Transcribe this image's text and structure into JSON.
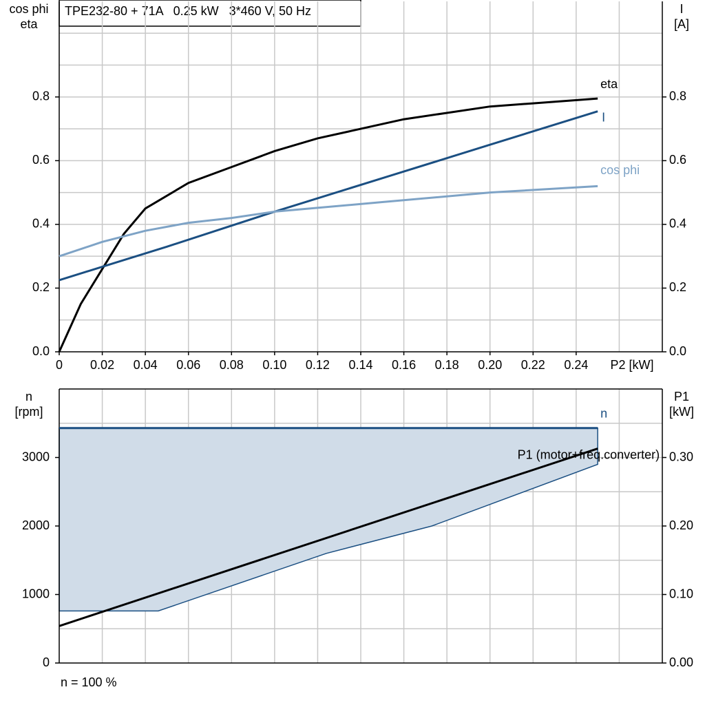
{
  "chart_data": [
    {
      "type": "line",
      "title": "TPE232-80 + 71A   0.25 kW   3*460 V, 50 Hz",
      "ylabel": [
        "cos phi",
        "eta"
      ],
      "y2label": [
        "I",
        "[A]"
      ],
      "xlabel": "P2 [kW]",
      "xlim": [
        0,
        0.28
      ],
      "xticks": [
        0,
        0.02,
        0.04,
        0.06,
        0.08,
        {
          "value": 0.1,
          "label": "0.10"
        },
        0.12,
        0.14,
        0.16,
        0.18,
        {
          "value": 0.2,
          "label": "0.20"
        },
        0.22,
        0.24
      ],
      "xgrid": [
        0.02,
        0.04,
        0.06,
        0.08,
        0.1,
        0.12,
        0.14,
        0.16,
        0.18,
        0.2,
        0.22,
        0.24,
        0.26
      ],
      "ylim": [
        0,
        1.1
      ],
      "yticks": [
        {
          "value": 0,
          "label": "0.0"
        },
        0.2,
        0.4,
        0.6,
        0.8
      ],
      "ygrid": [
        0.1,
        0.2,
        0.3,
        0.4,
        0.5,
        0.6,
        0.7,
        0.8,
        0.9,
        1.0
      ],
      "y2lim": [
        0,
        1.1
      ],
      "y2ticks": [
        {
          "value": 0,
          "label": "0.0"
        },
        0.2,
        0.4,
        0.6,
        0.8
      ],
      "series": [
        {
          "name": "eta",
          "color": "#000000",
          "x": [
            0,
            0.01,
            0.02,
            0.03,
            0.04,
            0.06,
            0.08,
            0.1,
            0.12,
            0.14,
            0.16,
            0.18,
            0.2,
            0.22,
            0.25
          ],
          "values": [
            0,
            0.15,
            0.26,
            0.37,
            0.45,
            0.53,
            0.58,
            0.63,
            0.67,
            0.7,
            0.73,
            0.75,
            0.77,
            0.78,
            0.795
          ]
        },
        {
          "name": "I",
          "color": "#1b4f82",
          "axis": "y2",
          "x": [
            0,
            0.05,
            0.1,
            0.15,
            0.2,
            0.25
          ],
          "values": [
            0.225,
            0.33,
            0.44,
            0.545,
            0.65,
            0.755
          ]
        },
        {
          "name": "cos phi",
          "color": "#7ea3c6",
          "x": [
            0,
            0.02,
            0.04,
            0.06,
            0.08,
            0.1,
            0.15,
            0.2,
            0.25
          ],
          "values": [
            0.3,
            0.345,
            0.38,
            0.405,
            0.42,
            0.44,
            0.47,
            0.5,
            0.52
          ]
        }
      ]
    },
    {
      "type": "line",
      "ylabel": [
        "n",
        "[rpm]"
      ],
      "y2label": [
        "P1",
        "[kW]"
      ],
      "note": "n = 100 %",
      "xlim": [
        0,
        0.28
      ],
      "xgrid": [
        0.02,
        0.04,
        0.06,
        0.08,
        0.1,
        0.12,
        0.14,
        0.16,
        0.18,
        0.2,
        0.22,
        0.24,
        0.26
      ],
      "ylim": [
        0,
        4000
      ],
      "yticks": [
        0,
        1000,
        2000,
        3000
      ],
      "ygrid": [
        500,
        1000,
        1500,
        2000,
        2500,
        3000,
        3500
      ],
      "y2lim": [
        0,
        0.4
      ],
      "y2ticks": [
        {
          "value": 0,
          "label": "0.00"
        },
        {
          "value": 0.1,
          "label": "0.10"
        },
        {
          "value": 0.2,
          "label": "0.20"
        },
        {
          "value": 0.3,
          "label": "0.30"
        }
      ],
      "area": {
        "color": "#d0dce8",
        "edge": "#1b4f82",
        "x": [
          0,
          0.046,
          0.124,
          0.173,
          0.25
        ],
        "lower": [
          760,
          760,
          1600,
          2000,
          2900
        ],
        "upper": [
          3430,
          3430,
          3430,
          3430,
          3430
        ]
      },
      "series": [
        {
          "name": "n",
          "color": "#1b4f82",
          "x": [
            0,
            0.25
          ],
          "values": [
            3430,
            3430
          ]
        },
        {
          "name": "P1 (motor+freq.converter)",
          "color": "#000000",
          "axis": "y2",
          "x": [
            0,
            0.25
          ],
          "values": [
            0.054,
            0.313
          ]
        }
      ]
    }
  ]
}
